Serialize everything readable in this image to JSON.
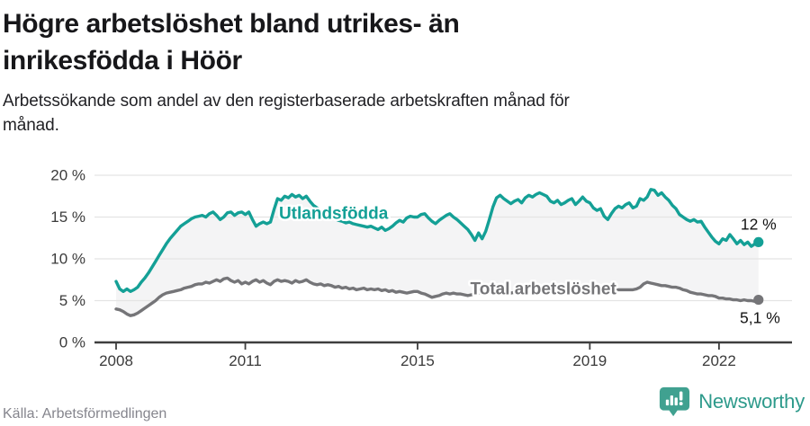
{
  "header": {
    "title_lines": [
      "Högre arbetslöshet bland utrikes- än",
      "inrikesfödda i Höör"
    ],
    "subtitle_lines": [
      "Arbetssökande som andel av den registerbaserade arbetskraften månad för",
      "månad."
    ]
  },
  "chart_data": {
    "type": "line",
    "title": "Högre arbetslöshet bland utrikes- än inrikesfödda i Höör",
    "subtitle": "Arbetssökande som andel av den registerbaserade arbetskraften månad för månad.",
    "frequency": "monthly",
    "x_start": "2008-01",
    "x_start_year": 2008,
    "x_tick_years": [
      2008,
      2011,
      2015,
      2019,
      2022
    ],
    "x_tick_labels": [
      "2008",
      "2011",
      "2015",
      "2019",
      "2022"
    ],
    "y_tick_values": [
      0,
      5,
      10,
      15,
      20
    ],
    "y_tick_labels": [
      "0 %",
      "5 %",
      "10 %",
      "15 %",
      "20 %"
    ],
    "ylim": [
      0,
      20
    ],
    "grid": true,
    "legend_position": "inline-labels",
    "fill_between_color": "#f4f4f5",
    "series": [
      {
        "id": "utlandsfodda",
        "name": "Utlandsfödda",
        "color": "#14a096",
        "end_label": "12 %",
        "end_label_offset": {
          "dx": 20,
          "dy": -14
        },
        "inline_label": {
          "year": 2013.05,
          "value": 15.35
        },
        "values": [
          7.3,
          6.4,
          6.1,
          6.4,
          6.1,
          6.3,
          6.6,
          7.2,
          7.7,
          8.3,
          9.0,
          9.7,
          10.4,
          11.1,
          11.8,
          12.4,
          12.9,
          13.4,
          13.9,
          14.2,
          14.5,
          14.8,
          15.0,
          15.1,
          15.2,
          15.0,
          15.4,
          15.6,
          15.2,
          14.7,
          15.0,
          15.5,
          15.6,
          15.2,
          15.5,
          15.6,
          15.3,
          15.6,
          14.7,
          13.9,
          14.2,
          14.4,
          14.2,
          14.4,
          15.9,
          17.2,
          17.0,
          17.5,
          17.3,
          17.7,
          17.4,
          17.6,
          17.2,
          17.5,
          16.9,
          16.4,
          16.1,
          15.8,
          15.5,
          15.2,
          15.0,
          14.8,
          14.6,
          14.5,
          14.3,
          14.4,
          14.2,
          14.1,
          14.0,
          13.9,
          13.8,
          13.9,
          13.7,
          13.5,
          13.8,
          13.4,
          13.6,
          13.9,
          14.3,
          14.6,
          14.4,
          14.9,
          15.1,
          15.0,
          15.0,
          15.3,
          15.4,
          14.9,
          14.5,
          14.2,
          14.6,
          14.9,
          15.2,
          15.4,
          15.0,
          14.7,
          14.3,
          13.9,
          13.5,
          12.9,
          12.2,
          13.1,
          12.4,
          13.3,
          14.7,
          16.2,
          17.3,
          17.6,
          17.2,
          16.9,
          16.6,
          16.9,
          17.1,
          16.7,
          17.3,
          17.6,
          17.4,
          17.7,
          17.9,
          17.7,
          17.5,
          16.9,
          16.7,
          17.0,
          16.5,
          16.7,
          17.0,
          17.2,
          16.5,
          16.9,
          17.4,
          16.9,
          16.7,
          16.1,
          15.8,
          16.0,
          15.1,
          14.7,
          15.4,
          16.0,
          16.3,
          16.1,
          16.5,
          16.7,
          16.1,
          16.3,
          17.2,
          17.0,
          17.4,
          18.3,
          18.2,
          17.6,
          17.9,
          17.4,
          17.0,
          16.4,
          16.0,
          15.3,
          15.0,
          14.7,
          14.5,
          14.7,
          14.4,
          14.5,
          13.8,
          13.2,
          12.6,
          12.1,
          11.8,
          12.4,
          12.2,
          12.9,
          12.4,
          11.8,
          12.2,
          11.7,
          12.0,
          11.5,
          11.8,
          12.0
        ]
      },
      {
        "id": "total",
        "name": "Total arbetslöshet",
        "color": "#757578",
        "end_label": "5,1 %",
        "end_label_offset": {
          "dx": 24,
          "dy": 26
        },
        "inline_label": {
          "year": 2017.92,
          "value": 6.35
        },
        "values": [
          4.0,
          3.9,
          3.7,
          3.4,
          3.2,
          3.3,
          3.5,
          3.8,
          4.1,
          4.4,
          4.7,
          5.0,
          5.4,
          5.7,
          5.9,
          6.0,
          6.1,
          6.2,
          6.3,
          6.5,
          6.6,
          6.7,
          6.9,
          7.0,
          7.0,
          7.2,
          7.1,
          7.3,
          7.5,
          7.3,
          7.6,
          7.7,
          7.4,
          7.2,
          7.4,
          7.0,
          7.2,
          7.0,
          7.3,
          7.5,
          7.2,
          7.4,
          7.1,
          6.9,
          7.3,
          7.5,
          7.3,
          7.4,
          7.3,
          7.1,
          7.4,
          7.2,
          7.3,
          7.5,
          7.2,
          7.0,
          6.9,
          7.0,
          6.8,
          6.9,
          6.8,
          6.6,
          6.7,
          6.5,
          6.6,
          6.4,
          6.5,
          6.3,
          6.4,
          6.5,
          6.3,
          6.4,
          6.3,
          6.4,
          6.2,
          6.3,
          6.1,
          6.2,
          6.0,
          6.1,
          6.0,
          5.9,
          6.0,
          6.1,
          6.1,
          5.9,
          5.8,
          5.6,
          5.4,
          5.5,
          5.6,
          5.8,
          5.9,
          5.8,
          5.9,
          5.8,
          5.8,
          5.7,
          5.6,
          5.7,
          5.8,
          5.9,
          6.0,
          6.1,
          6.2,
          6.1,
          6.2,
          6.1,
          6.1,
          6.0,
          5.9,
          6.0,
          6.1,
          6.0,
          6.1,
          6.2,
          6.1,
          6.2,
          6.1,
          6.0,
          6.1,
          6.0,
          5.9,
          5.8,
          5.9,
          5.8,
          5.9,
          6.0,
          5.9,
          6.0,
          6.0,
          6.0,
          6.0,
          5.9,
          6.0,
          6.1,
          6.0,
          6.1,
          6.2,
          6.2,
          6.3,
          6.3,
          6.3,
          6.3,
          6.3,
          6.4,
          6.6,
          7.0,
          7.2,
          7.1,
          7.0,
          6.9,
          6.8,
          6.8,
          6.7,
          6.6,
          6.6,
          6.5,
          6.3,
          6.2,
          6.0,
          5.9,
          5.8,
          5.8,
          5.7,
          5.6,
          5.6,
          5.5,
          5.3,
          5.3,
          5.2,
          5.2,
          5.1,
          5.1,
          5.0,
          5.1,
          5.0,
          5.0,
          4.9,
          5.1
        ]
      }
    ]
  },
  "footer": {
    "source": "Källa: Arbetsförmedlingen",
    "brand": "Newsworthy"
  },
  "colors": {
    "accent_teal": "#14a096",
    "line_gray": "#757578",
    "fill_between": "#f4f4f5",
    "grid": "#e4e4e4",
    "axis": "#3e3e3e",
    "brand_teal": "#2d9a8b",
    "source_gray": "#85858d"
  }
}
